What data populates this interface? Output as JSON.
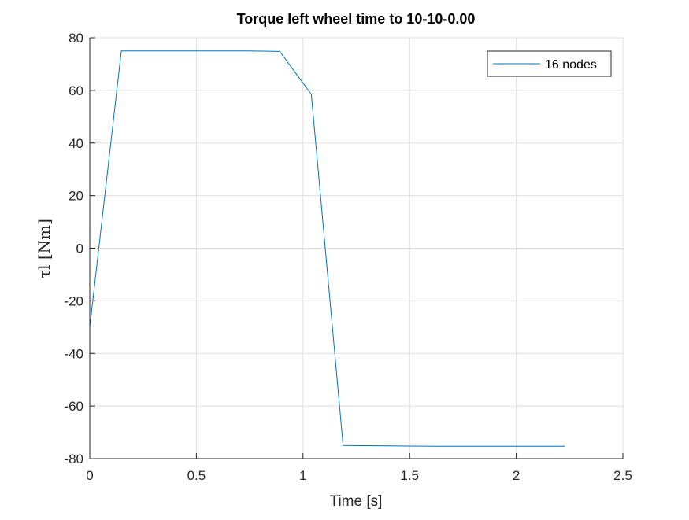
{
  "chart_data": {
    "type": "line",
    "title": "Torque left wheel time to 10-10-0.00",
    "xlabel": "Time [s]",
    "ylabel": "τl [Nm]",
    "xlim": [
      0,
      2.5
    ],
    "ylim": [
      -80,
      80
    ],
    "xticks": [
      "0",
      "0.5",
      "1",
      "1.5",
      "2",
      "2.5"
    ],
    "xtick_values": [
      0,
      0.5,
      1,
      1.5,
      2,
      2.5
    ],
    "yticks": [
      "80",
      "60",
      "40",
      "20",
      "0",
      "-20",
      "-40",
      "-60",
      "-80"
    ],
    "ytick_values": [
      80,
      60,
      40,
      20,
      0,
      -20,
      -40,
      -60,
      -80
    ],
    "grid": true,
    "legend_position": "top-right",
    "series": [
      {
        "name": "16 nodes",
        "color": "#0072BD",
        "x": [
          0,
          0.148,
          0.297,
          0.445,
          0.594,
          0.742,
          0.891,
          1.039,
          1.188,
          1.336,
          1.485,
          1.633,
          1.782,
          1.93,
          2.079,
          2.227
        ],
        "y": [
          -30,
          75,
          75,
          75,
          75,
          75,
          74.8,
          58.5,
          -75,
          -75.1,
          -75.2,
          -75.3,
          -75.3,
          -75.3,
          -75.3,
          -75.3
        ]
      }
    ]
  }
}
